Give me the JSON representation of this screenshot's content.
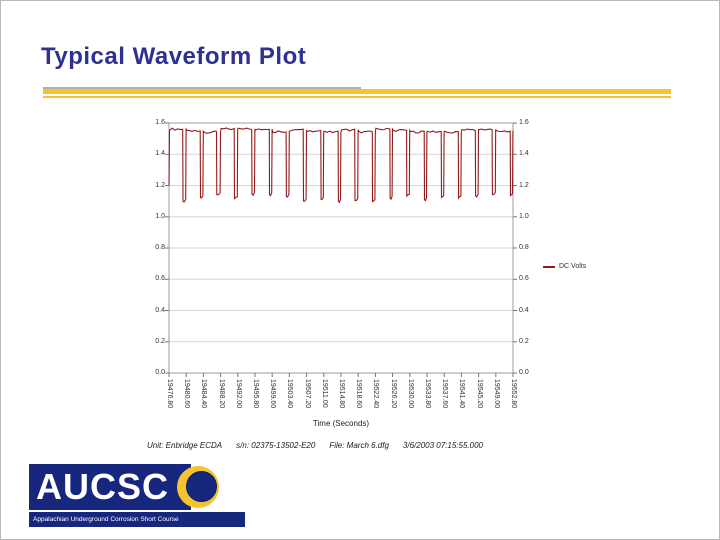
{
  "slide": {
    "title": "Typical Waveform Plot"
  },
  "chart_data": {
    "type": "line",
    "title": "",
    "xlabel": "Time (Seconds)",
    "ylabel": "",
    "legend_label": "DC Volts",
    "legend_position": "right",
    "xlim": [
      19476.8,
      19552.8
    ],
    "ylim": [
      0,
      1.6
    ],
    "x_ticks": [
      "19476.80",
      "19480.60",
      "19484.40",
      "19488.20",
      "19492.00",
      "19495.80",
      "19499.60",
      "19503.40",
      "19507.20",
      "19511.00",
      "19514.80",
      "19518.60",
      "19522.40",
      "19526.20",
      "19530.00",
      "19533.80",
      "19537.60",
      "19541.40",
      "19545.20",
      "19549.00",
      "19552.80"
    ],
    "y_ticks": [
      "0.0",
      "0.2",
      "0.4",
      "0.6",
      "0.8",
      "1.0",
      "1.2",
      "1.4",
      "1.6"
    ],
    "grid": "horizontal",
    "series_color": "#931a1a",
    "waveform": {
      "description": "Interrupted DC voltage: on level ~1.55 V with brief off dips to ~1.12 V once per cycle",
      "on_level": 1.55,
      "off_level": 1.12,
      "period_s": 3.8,
      "off_duration_s": 0.6,
      "start_level": 1.2,
      "num_cycles": 20
    }
  },
  "footer": {
    "unit": "Unit: Enbridge ECDA",
    "serial": "s/n: 02375-13502-E20",
    "file": "File: March 6.dfg",
    "timestamp": "3/6/2003 07:15:55.000"
  },
  "logo": {
    "acronym": "AUCSC",
    "tagline": "Appalachian Underground Corrosion Short Course"
  },
  "colors": {
    "title": "#2e3192",
    "accent_gold": "#f4c430",
    "navy": "#16277d",
    "trace_red": "#931a1a"
  }
}
